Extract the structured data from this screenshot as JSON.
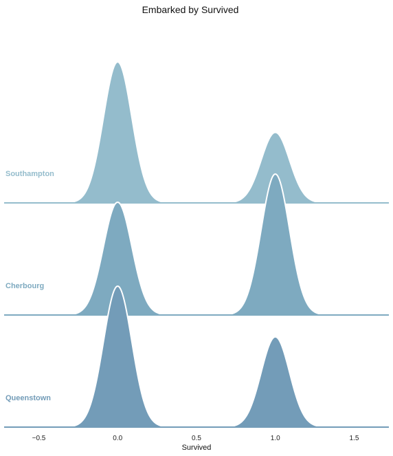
{
  "chart_data": {
    "type": "ridgeline-kde",
    "title": "Embarked by Survived",
    "xlabel": "Survived",
    "xlim": [
      -0.72,
      1.72
    ],
    "xticks": [
      "−0.5",
      "0.0",
      "0.5",
      "1.0",
      "1.5"
    ],
    "xtick_values": [
      -0.5,
      0.0,
      0.5,
      1.0,
      1.5
    ],
    "bandwidth": 0.09,
    "series": [
      {
        "name": "Southampton",
        "color": "#94bccc",
        "peaks": [
          {
            "x": 0.0,
            "density": 1.0
          },
          {
            "x": 1.0,
            "density": 0.5
          }
        ]
      },
      {
        "name": "Cherbourg",
        "color": "#7eaac0",
        "peaks": [
          {
            "x": 0.0,
            "density": 0.8
          },
          {
            "x": 1.0,
            "density": 1.0
          }
        ]
      },
      {
        "name": "Queenstown",
        "color": "#739cb8",
        "peaks": [
          {
            "x": 0.0,
            "density": 1.0
          },
          {
            "x": 1.0,
            "density": 0.64
          }
        ]
      }
    ]
  }
}
